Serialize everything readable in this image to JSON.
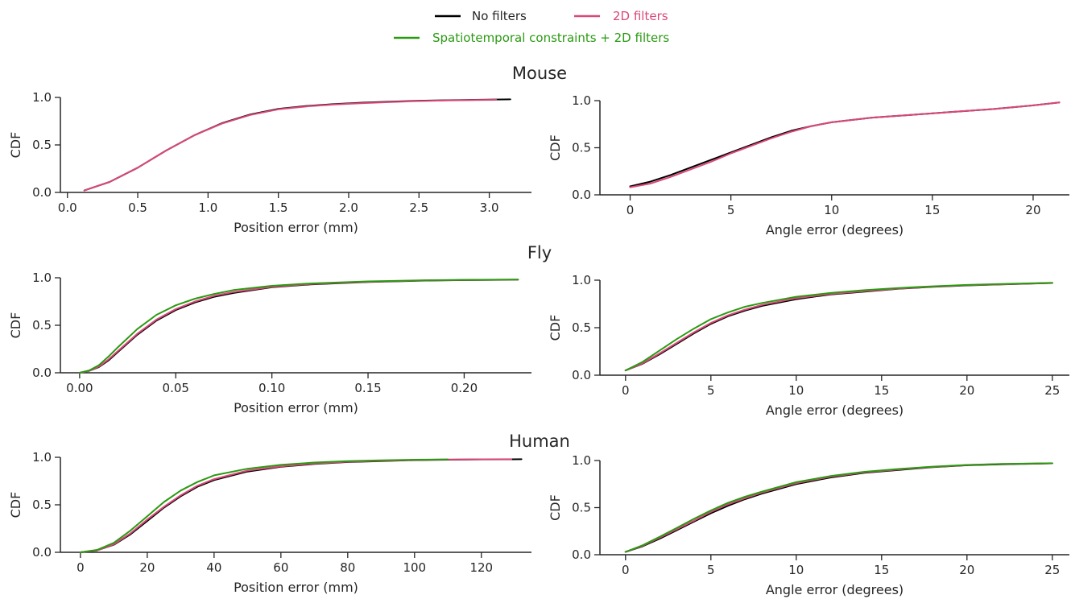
{
  "legend": [
    {
      "label": "No filters",
      "color": "#000000"
    },
    {
      "label": "2D filters",
      "color": "#d9487a"
    },
    {
      "label": "Spatiotemporal constraints + 2D filters",
      "color": "#2a9a12"
    }
  ],
  "rows": [
    {
      "title": "Mouse"
    },
    {
      "title": "Fly"
    },
    {
      "title": "Human"
    }
  ],
  "chart_data": [
    {
      "type": "line",
      "row": "Mouse",
      "xlabel": "Position error (mm)",
      "ylabel": "CDF",
      "xlim": [
        -0.05,
        3.3
      ],
      "ylim": [
        0,
        1
      ],
      "xticks": [
        0.0,
        0.5,
        1.0,
        1.5,
        2.0,
        2.5,
        3.0
      ],
      "xtick_labels": [
        "0.0",
        "0.5",
        "1.0",
        "1.5",
        "2.0",
        "2.5",
        "3.0"
      ],
      "yticks": [
        0,
        0.5,
        1.0
      ],
      "ytick_labels": [
        "0.0",
        "0.5",
        "1.0"
      ],
      "series": [
        {
          "name": "No filters",
          "color": "#000000",
          "x": [
            0.12,
            0.3,
            0.5,
            0.7,
            0.9,
            1.1,
            1.3,
            1.5,
            1.7,
            1.9,
            2.1,
            2.3,
            2.5,
            2.7,
            2.9,
            3.15
          ],
          "y": [
            0.02,
            0.11,
            0.26,
            0.44,
            0.6,
            0.73,
            0.82,
            0.88,
            0.91,
            0.93,
            0.945,
            0.955,
            0.965,
            0.97,
            0.975,
            0.98
          ]
        },
        {
          "name": "2D filters",
          "color": "#d9487a",
          "x": [
            0.12,
            0.3,
            0.5,
            0.7,
            0.9,
            1.1,
            1.3,
            1.5,
            1.7,
            1.9,
            2.1,
            2.3,
            2.5,
            2.7,
            2.9,
            3.05
          ],
          "y": [
            0.02,
            0.11,
            0.26,
            0.44,
            0.6,
            0.725,
            0.815,
            0.875,
            0.905,
            0.925,
            0.94,
            0.952,
            0.962,
            0.968,
            0.973,
            0.975
          ]
        }
      ]
    },
    {
      "type": "line",
      "row": "Mouse",
      "xlabel": "Angle error (degrees)",
      "ylabel": "CDF",
      "xlim": [
        -1.5,
        21.8
      ],
      "ylim": [
        0,
        1
      ],
      "xticks": [
        0,
        5,
        10,
        15,
        20
      ],
      "xtick_labels": [
        "0",
        "5",
        "10",
        "15",
        "20"
      ],
      "yticks": [
        0,
        0.5,
        1.0
      ],
      "ytick_labels": [
        "0.0",
        "0.5",
        "1.0"
      ],
      "series": [
        {
          "name": "No filters",
          "color": "#000000",
          "x": [
            0,
            1,
            2,
            3,
            4,
            5,
            6,
            7,
            8,
            9,
            10,
            12,
            14,
            16,
            18,
            20,
            21.3
          ],
          "y": [
            0.09,
            0.14,
            0.21,
            0.29,
            0.37,
            0.45,
            0.53,
            0.61,
            0.68,
            0.73,
            0.77,
            0.82,
            0.85,
            0.88,
            0.91,
            0.95,
            0.98
          ]
        },
        {
          "name": "2D filters",
          "color": "#d9487a",
          "x": [
            0,
            1,
            2,
            3,
            4,
            5,
            6,
            7,
            8,
            9,
            10,
            12,
            14,
            16,
            18,
            20,
            21.3
          ],
          "y": [
            0.08,
            0.12,
            0.19,
            0.27,
            0.35,
            0.44,
            0.52,
            0.6,
            0.67,
            0.73,
            0.77,
            0.82,
            0.85,
            0.88,
            0.91,
            0.95,
            0.98
          ]
        }
      ]
    },
    {
      "type": "line",
      "row": "Fly",
      "xlabel": "Position error (mm)",
      "ylabel": "CDF",
      "xlim": [
        -0.01,
        0.235
      ],
      "ylim": [
        0,
        1
      ],
      "xticks": [
        0.0,
        0.05,
        0.1,
        0.15,
        0.2
      ],
      "xtick_labels": [
        "0.00",
        "0.05",
        "0.10",
        "0.15",
        "0.20"
      ],
      "yticks": [
        0,
        0.5,
        1.0
      ],
      "ytick_labels": [
        "0.0",
        "0.5",
        "1.0"
      ],
      "series": [
        {
          "name": "No filters",
          "color": "#000000",
          "x": [
            0.0,
            0.005,
            0.01,
            0.015,
            0.02,
            0.03,
            0.04,
            0.05,
            0.06,
            0.07,
            0.08,
            0.1,
            0.12,
            0.15,
            0.18,
            0.2,
            0.228
          ],
          "y": [
            0.0,
            0.02,
            0.06,
            0.13,
            0.22,
            0.4,
            0.55,
            0.66,
            0.74,
            0.8,
            0.84,
            0.9,
            0.93,
            0.955,
            0.97,
            0.975,
            0.98
          ]
        },
        {
          "name": "2D filters",
          "color": "#d9487a",
          "x": [
            0.0,
            0.005,
            0.01,
            0.015,
            0.02,
            0.03,
            0.04,
            0.05,
            0.06,
            0.07,
            0.08,
            0.1,
            0.12,
            0.15,
            0.18,
            0.2,
            0.228
          ],
          "y": [
            0.0,
            0.02,
            0.065,
            0.14,
            0.23,
            0.41,
            0.56,
            0.67,
            0.75,
            0.81,
            0.85,
            0.905,
            0.935,
            0.958,
            0.972,
            0.977,
            0.98
          ]
        },
        {
          "name": "Spatiotemporal constraints + 2D filters",
          "color": "#2a9a12",
          "x": [
            0.0,
            0.005,
            0.01,
            0.015,
            0.02,
            0.03,
            0.04,
            0.05,
            0.06,
            0.07,
            0.08,
            0.1,
            0.12,
            0.15,
            0.18,
            0.2,
            0.228
          ],
          "y": [
            0.0,
            0.025,
            0.08,
            0.17,
            0.27,
            0.46,
            0.61,
            0.71,
            0.78,
            0.83,
            0.87,
            0.915,
            0.94,
            0.962,
            0.974,
            0.978,
            0.981
          ]
        }
      ]
    },
    {
      "type": "line",
      "row": "Fly",
      "xlabel": "Angle error (degrees)",
      "ylabel": "CDF",
      "xlim": [
        -1.5,
        26
      ],
      "ylim": [
        0,
        1
      ],
      "xticks": [
        0,
        5,
        10,
        15,
        20,
        25
      ],
      "xtick_labels": [
        "0",
        "5",
        "10",
        "15",
        "20",
        "25"
      ],
      "yticks": [
        0,
        0.5,
        1.0
      ],
      "ytick_labels": [
        "0.0",
        "0.5",
        "1.0"
      ],
      "series": [
        {
          "name": "No filters",
          "color": "#000000",
          "x": [
            0,
            1,
            2,
            3,
            4,
            5,
            6,
            7,
            8,
            10,
            12,
            14,
            16,
            18,
            20,
            22,
            25
          ],
          "y": [
            0.05,
            0.12,
            0.22,
            0.33,
            0.44,
            0.54,
            0.62,
            0.68,
            0.73,
            0.8,
            0.85,
            0.88,
            0.91,
            0.93,
            0.945,
            0.955,
            0.97
          ]
        },
        {
          "name": "2D filters",
          "color": "#d9487a",
          "x": [
            0,
            1,
            2,
            3,
            4,
            5,
            6,
            7,
            8,
            10,
            12,
            14,
            16,
            18,
            20,
            22,
            25
          ],
          "y": [
            0.05,
            0.125,
            0.23,
            0.34,
            0.45,
            0.55,
            0.63,
            0.69,
            0.74,
            0.81,
            0.855,
            0.885,
            0.912,
            0.932,
            0.947,
            0.957,
            0.97
          ]
        },
        {
          "name": "Spatiotemporal constraints + 2D filters",
          "color": "#2a9a12",
          "x": [
            0,
            1,
            2,
            3,
            4,
            5,
            6,
            7,
            8,
            10,
            12,
            14,
            16,
            18,
            20,
            22,
            25
          ],
          "y": [
            0.05,
            0.14,
            0.26,
            0.38,
            0.49,
            0.59,
            0.66,
            0.72,
            0.76,
            0.825,
            0.865,
            0.895,
            0.918,
            0.936,
            0.95,
            0.96,
            0.972
          ]
        }
      ]
    },
    {
      "type": "line",
      "row": "Human",
      "xlabel": "Position error (mm)",
      "ylabel": "CDF",
      "xlim": [
        -6,
        135
      ],
      "ylim": [
        0,
        1
      ],
      "xticks": [
        0,
        20,
        40,
        60,
        80,
        100,
        120
      ],
      "xtick_labels": [
        "0",
        "20",
        "40",
        "60",
        "80",
        "100",
        "120"
      ],
      "yticks": [
        0,
        0.5,
        1.0
      ],
      "ytick_labels": [
        "0.0",
        "0.5",
        "1.0"
      ],
      "series": [
        {
          "name": "No filters",
          "color": "#000000",
          "x": [
            0,
            5,
            10,
            15,
            20,
            25,
            30,
            35,
            40,
            50,
            60,
            70,
            80,
            90,
            100,
            110,
            120,
            132
          ],
          "y": [
            0.0,
            0.02,
            0.08,
            0.19,
            0.33,
            0.47,
            0.59,
            0.69,
            0.76,
            0.85,
            0.9,
            0.93,
            0.95,
            0.96,
            0.97,
            0.975,
            0.978,
            0.98
          ]
        },
        {
          "name": "2D filters",
          "color": "#d9487a",
          "x": [
            0,
            5,
            10,
            15,
            20,
            25,
            30,
            35,
            40,
            50,
            60,
            70,
            80,
            90,
            100,
            110,
            120,
            129
          ],
          "y": [
            0.0,
            0.02,
            0.085,
            0.2,
            0.345,
            0.48,
            0.6,
            0.7,
            0.77,
            0.86,
            0.905,
            0.935,
            0.953,
            0.963,
            0.972,
            0.976,
            0.979,
            0.98
          ]
        },
        {
          "name": "Spatiotemporal constraints + 2D filters",
          "color": "#2a9a12",
          "x": [
            0,
            5,
            10,
            15,
            20,
            25,
            30,
            35,
            40,
            50,
            60,
            70,
            80,
            90,
            100,
            110
          ],
          "y": [
            0.0,
            0.025,
            0.1,
            0.23,
            0.38,
            0.53,
            0.65,
            0.74,
            0.81,
            0.88,
            0.92,
            0.945,
            0.96,
            0.968,
            0.975,
            0.978
          ]
        }
      ]
    },
    {
      "type": "line",
      "row": "Human",
      "xlabel": "Angle error (degrees)",
      "ylabel": "CDF",
      "xlim": [
        -1.5,
        26
      ],
      "ylim": [
        0,
        1
      ],
      "xticks": [
        0,
        5,
        10,
        15,
        20,
        25
      ],
      "xtick_labels": [
        "0",
        "5",
        "10",
        "15",
        "20",
        "25"
      ],
      "yticks": [
        0,
        0.5,
        1.0
      ],
      "ytick_labels": [
        "0.0",
        "0.5",
        "1.0"
      ],
      "series": [
        {
          "name": "No filters",
          "color": "#000000",
          "x": [
            0,
            1,
            2,
            3,
            4,
            5,
            6,
            7,
            8,
            10,
            12,
            14,
            16,
            18,
            20,
            22,
            25
          ],
          "y": [
            0.03,
            0.09,
            0.17,
            0.26,
            0.35,
            0.44,
            0.52,
            0.59,
            0.65,
            0.75,
            0.82,
            0.87,
            0.9,
            0.93,
            0.95,
            0.96,
            0.97
          ]
        },
        {
          "name": "2D filters",
          "color": "#d9487a",
          "x": [
            0,
            1,
            2,
            3,
            4,
            5,
            6,
            7,
            8,
            10,
            12,
            14,
            16,
            18,
            20,
            22,
            25
          ],
          "y": [
            0.03,
            0.095,
            0.18,
            0.27,
            0.36,
            0.455,
            0.535,
            0.6,
            0.66,
            0.76,
            0.828,
            0.875,
            0.905,
            0.932,
            0.952,
            0.962,
            0.97
          ]
        },
        {
          "name": "Spatiotemporal constraints + 2D filters",
          "color": "#2a9a12",
          "x": [
            0,
            1,
            2,
            3,
            4,
            5,
            6,
            7,
            8,
            10,
            12,
            14,
            16,
            18,
            20,
            22,
            25
          ],
          "y": [
            0.03,
            0.1,
            0.19,
            0.285,
            0.38,
            0.47,
            0.55,
            0.615,
            0.67,
            0.77,
            0.835,
            0.88,
            0.91,
            0.935,
            0.953,
            0.963,
            0.971
          ]
        }
      ]
    }
  ]
}
